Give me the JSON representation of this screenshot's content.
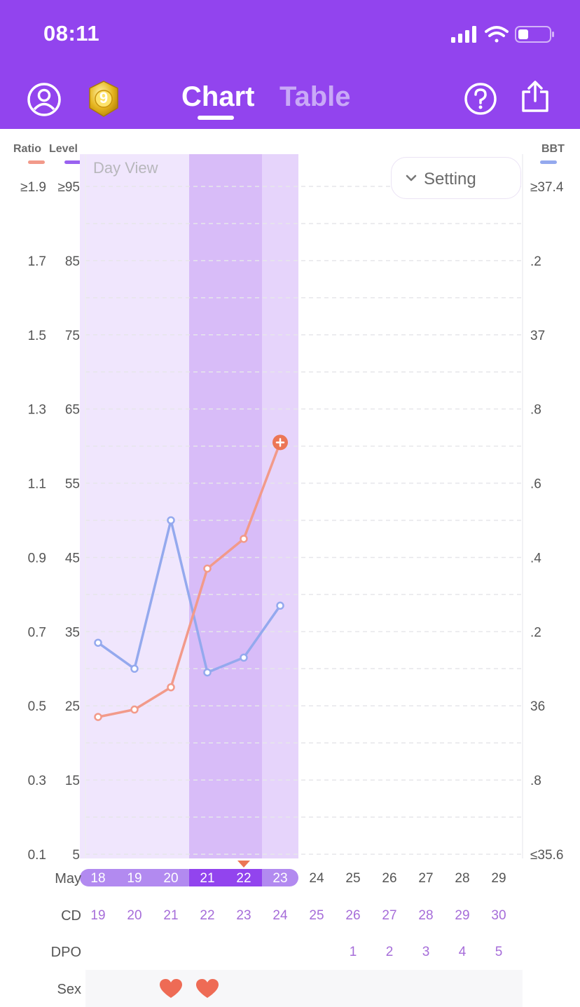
{
  "status_bar": {
    "time": "08:11"
  },
  "header": {
    "badge_level": "9",
    "tabs": [
      {
        "label": "Chart",
        "active": true
      },
      {
        "label": "Table",
        "active": false
      }
    ]
  },
  "legend": {
    "ratio": "Ratio",
    "level": "Level",
    "bbt": "BBT"
  },
  "controls": {
    "setting_label": "Setting",
    "view_label": "Day View"
  },
  "colors": {
    "header": "#9244ee",
    "ratio": "#f29a8a",
    "level": "#9a62f0",
    "bbt": "#94a9ee",
    "ovulation_marker": "#ec7656",
    "period_band": "#f0e6fd",
    "ovulation_band": "#d8bcf8",
    "fertile_band": "#e6d4fb"
  },
  "chart_data": {
    "type": "line",
    "x": [
      "18",
      "19",
      "20",
      "21",
      "22",
      "23",
      "24",
      "25",
      "26",
      "27",
      "28",
      "29"
    ],
    "x_month": "May",
    "y_left_ratio_ticks": [
      "≥1.9",
      "1.7",
      "1.5",
      "1.3",
      "1.1",
      "0.9",
      "0.7",
      "0.5",
      "0.3",
      "0.1"
    ],
    "y_left_level_ticks": [
      "≥95",
      "85",
      "75",
      "65",
      "55",
      "45",
      "35",
      "25",
      "15",
      "5"
    ],
    "y_right_bbt_ticks": [
      "≥37.4",
      ".2",
      "37",
      ".8",
      ".6",
      ".4",
      ".2",
      "36",
      ".8",
      "≤35.6"
    ],
    "ylim_ratio": [
      0.1,
      1.9
    ],
    "ylim_bbt": [
      35.6,
      37.4
    ],
    "series": [
      {
        "name": "Ratio",
        "x": [
          "18",
          "19",
          "20",
          "21",
          "22",
          "23"
        ],
        "values": [
          0.47,
          0.49,
          0.55,
          0.87,
          0.95,
          1.21
        ],
        "color": "#f29a8a",
        "last_point_marker": "plus"
      },
      {
        "name": "BBT",
        "x": [
          "18",
          "19",
          "20",
          "21",
          "22",
          "23"
        ],
        "values": [
          36.17,
          36.1,
          36.5,
          36.09,
          36.13,
          36.27
        ],
        "color": "#94a9ee"
      }
    ],
    "highlighted_days": [
      "18",
      "19",
      "20",
      "21",
      "22",
      "23"
    ],
    "selected_day": "22",
    "cd": [
      "19",
      "20",
      "21",
      "22",
      "23",
      "24",
      "25",
      "26",
      "27",
      "28",
      "29",
      "30"
    ],
    "dpo": [
      "",
      "",
      "",
      "",
      "",
      "",
      "",
      "1",
      "2",
      "3",
      "4",
      "5"
    ],
    "sex_days": [
      "20",
      "21"
    ],
    "row_labels": {
      "month": "May",
      "cd": "CD",
      "dpo": "DPO",
      "sex": "Sex"
    },
    "grid": true
  }
}
